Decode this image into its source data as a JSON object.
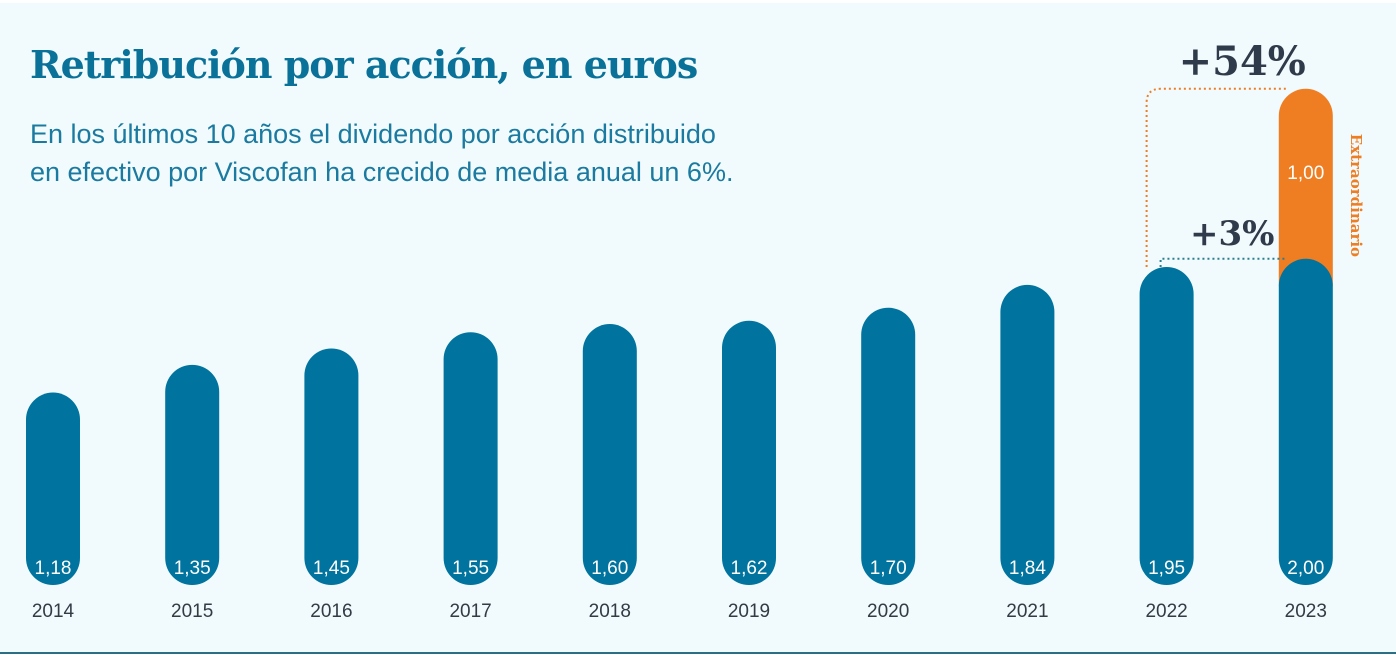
{
  "header": {
    "title": "Retribución por acción, en euros",
    "subtitle_line1": "En los últimos 10 años el dividendo por acción distribuido",
    "subtitle_line2": "en efectivo por Viscofan ha crecido de media anual un 6%."
  },
  "colors": {
    "background": "#f1fafc",
    "bar": "#00739e",
    "extraordinary": "#ef7d22",
    "title": "#0a7199",
    "text": "#333b45",
    "dotted_teal": "#2a7f8f",
    "dotted_orange": "#ef7d22"
  },
  "chart_data": {
    "type": "bar",
    "title": "Retribución por acción, en euros",
    "categories": [
      "2014",
      "2015",
      "2016",
      "2017",
      "2018",
      "2019",
      "2020",
      "2021",
      "2022",
      "2023"
    ],
    "series": [
      {
        "values": [
          1.18,
          1.35,
          1.45,
          1.55,
          1.6,
          1.62,
          1.7,
          1.84,
          1.95,
          2.0
        ],
        "labels": [
          "1,18",
          "1,35",
          "1,45",
          "1,55",
          "1,60",
          "1,62",
          "1,70",
          "1,84",
          "1,95",
          "2,00"
        ]
      },
      {
        "name": "Extraordinario",
        "values": [
          0,
          0,
          0,
          0,
          0,
          0,
          0,
          0,
          0,
          1.0
        ],
        "labels": [
          "",
          "",
          "",
          "",
          "",
          "",
          "",
          "",
          "",
          "1,00"
        ]
      }
    ],
    "stacked": true,
    "annotations": [
      {
        "text": "+3%",
        "from": "2022",
        "to": "2023",
        "basis": "ordinary"
      },
      {
        "text": "+54%",
        "from": "2022",
        "to": "2023",
        "basis": "total"
      }
    ],
    "xlabel": "",
    "ylabel": "",
    "grid": false,
    "legend": "right side label on extraordinary segment"
  }
}
